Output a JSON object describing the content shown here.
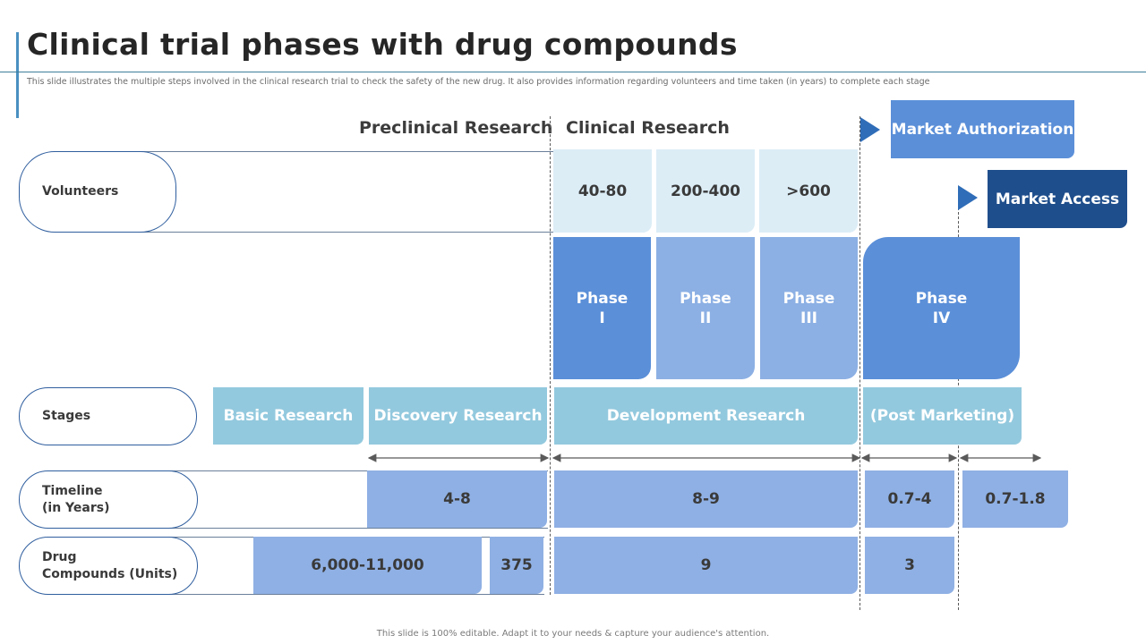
{
  "header": {
    "title": "Clinical trial phases with drug compounds",
    "subtitle": "This slide illustrates the multiple steps involved in the clinical research trial to check the safety of the new drug. It also provides information regarding volunteers and time taken (in years) to complete each stage"
  },
  "sections": {
    "preclinical": "Preclinical  Research",
    "clinical": "Clinical  Research"
  },
  "market": {
    "authorization": "Market Authorization",
    "access": "Market Access"
  },
  "rows": {
    "volunteers": "Volunteers",
    "stages": "Stages",
    "timeline_line1": "Timeline",
    "timeline_line2": "(in Years)",
    "compounds_line1": "Drug",
    "compounds_line2": "Compounds (Units)"
  },
  "volunteers": [
    "40-80",
    "200-400",
    ">600"
  ],
  "phases": [
    {
      "line1": "Phase",
      "line2": "I"
    },
    {
      "line1": "Phase",
      "line2": "II"
    },
    {
      "line1": "Phase",
      "line2": "III"
    },
    {
      "line1": "Phase",
      "line2": "IV"
    }
  ],
  "stages": [
    "Basic Research",
    "Discovery Research",
    "Development Research",
    "(Post Marketing)"
  ],
  "timeline": [
    "4-8",
    "8-9",
    "0.7-4",
    "0.7-1.8"
  ],
  "compounds": [
    "6,000-11,000",
    "375",
    "9",
    "3"
  ],
  "footer": "This slide is 100% editable. Adapt it to your needs & capture your audience's attention.",
  "colors": {
    "phase_dark": "#5b8fd8",
    "phase_light": "#8cb0e4",
    "stage": "#93c9de",
    "volunteer": "#dcedf6",
    "value": "#8fb0e4",
    "market_authorization": "#5b8fd8",
    "market_access": "#1f4e8c"
  }
}
